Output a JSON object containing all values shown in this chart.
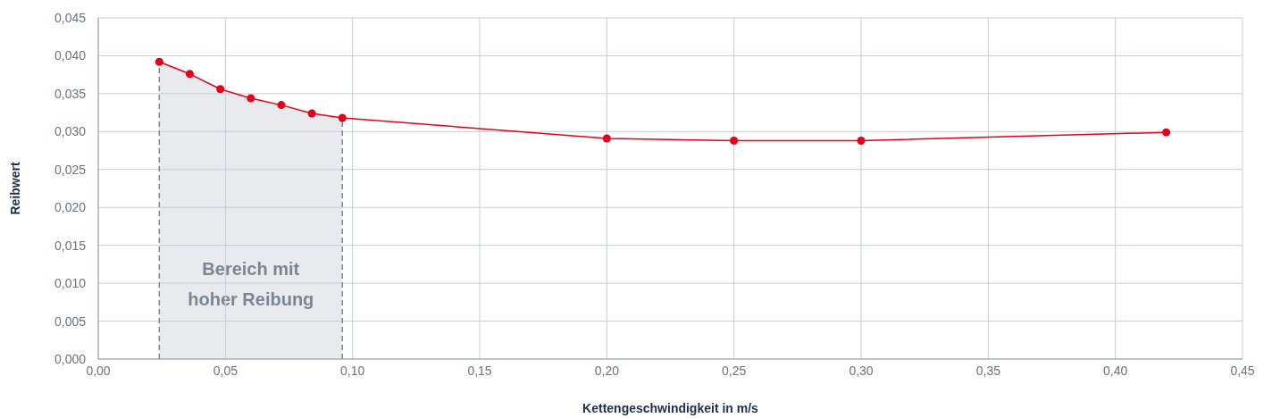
{
  "chart_data": {
    "type": "line",
    "xlabel": "Kettengeschwindigkeit in m/s",
    "ylabel": "Reibwert",
    "x": [
      0.024,
      0.036,
      0.048,
      0.06,
      0.072,
      0.084,
      0.096,
      0.2,
      0.25,
      0.3,
      0.42
    ],
    "series": [
      {
        "color": "#e2001a",
        "values": [
          0.0392,
          0.0376,
          0.0356,
          0.0344,
          0.0335,
          0.0324,
          0.0318,
          0.0291,
          0.0288,
          0.0288,
          0.0299
        ]
      }
    ],
    "xlim": [
      0,
      0.45
    ],
    "xticks": [
      {
        "value": 0,
        "label": "0,00"
      },
      {
        "value": 0.05,
        "label": "0,05"
      },
      {
        "value": 0.1,
        "label": "0,10"
      },
      {
        "value": 0.15,
        "label": "0,15"
      },
      {
        "value": 0.2,
        "label": "0,20"
      },
      {
        "value": 0.25,
        "label": "0,25"
      },
      {
        "value": 0.3,
        "label": "0,30"
      },
      {
        "value": 0.35,
        "label": "0,35"
      },
      {
        "value": 0.4,
        "label": "0,40"
      },
      {
        "value": 0.45,
        "label": "0,45"
      }
    ],
    "ylim": [
      0,
      0.045
    ],
    "yticks": [
      {
        "value": 0,
        "label": "0,000"
      },
      {
        "value": 0.005,
        "label": "0,005"
      },
      {
        "value": 0.01,
        "label": "0,010"
      },
      {
        "value": 0.015,
        "label": "0,015"
      },
      {
        "value": 0.02,
        "label": "0,020"
      },
      {
        "value": 0.025,
        "label": "0,025"
      },
      {
        "value": 0.03,
        "label": "0,030"
      },
      {
        "value": 0.035,
        "label": "0,035"
      },
      {
        "value": 0.04,
        "label": "0,040"
      },
      {
        "value": 0.045,
        "label": "0,045"
      }
    ],
    "bands": [
      {
        "axis": "x",
        "from": 0.024,
        "to": 0.096,
        "label": "Bereich mit hoher Reibung",
        "color": "#e8eaee"
      }
    ],
    "ref_lines": [
      {
        "axis": "x",
        "value": 0.024,
        "color": "#7d8590",
        "line_style": "dashed"
      },
      {
        "axis": "x",
        "value": 0.096,
        "color": "#7d8590",
        "line_style": "dashed"
      }
    ],
    "grid": true,
    "marker": "circle",
    "line_style": "solid"
  }
}
